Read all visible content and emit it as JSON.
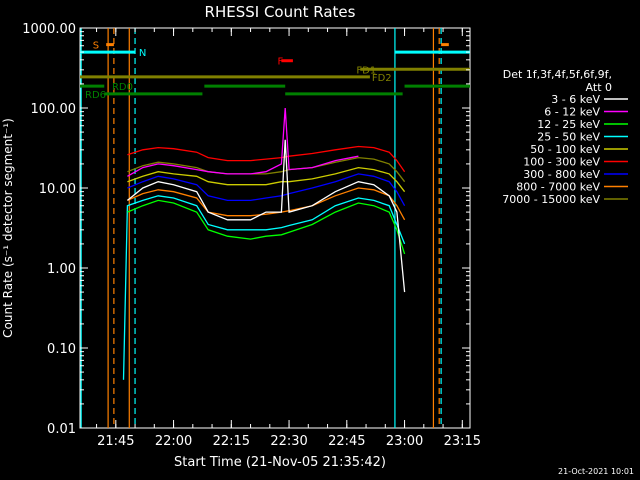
{
  "chart_data": {
    "type": "line",
    "title": "RHESSI Count Rates",
    "xlabel": "Start Time (21-Nov-05 21:35:42)",
    "ylabel": "Count Rate (s⁻¹ detector segment⁻¹)",
    "x_ticks": [
      "21:45",
      "22:00",
      "22:15",
      "22:30",
      "22:45",
      "23:00",
      "23:15"
    ],
    "y_ticks": [
      "1000.00",
      "100.00",
      "10.00",
      "1.00",
      "0.10",
      "0.01"
    ],
    "ylim": [
      0.01,
      1000
    ],
    "y_scale": "log",
    "xlim": [
      "21:35:42",
      "23:17:00"
    ],
    "grid": false,
    "legend_position": "right",
    "legend_header": [
      "Det 1f,3f,4f,5f,6f,9f,",
      "Att 0"
    ],
    "footer_date": "21-Oct-2021 10:01",
    "series": [
      {
        "name": "3 - 6 keV",
        "color": "#ffffff",
        "x": [
          "21:48",
          "21:52",
          "21:56",
          "22:00",
          "22:06",
          "22:09",
          "22:14",
          "22:20",
          "22:24",
          "22:28",
          "22:29",
          "22:30",
          "22:36",
          "22:42",
          "22:48",
          "22:52",
          "22:56",
          "22:58",
          "23:00"
        ],
        "values": [
          7,
          10,
          12,
          11,
          9,
          5,
          4,
          4,
          5,
          5,
          40,
          5,
          6,
          9,
          12,
          11,
          8,
          5,
          0.5
        ]
      },
      {
        "name": "6 - 12 keV",
        "color": "#ff00ff",
        "x": [
          "21:48",
          "21:52",
          "21:56",
          "22:00",
          "22:06",
          "22:09",
          "22:14",
          "22:20",
          "22:24",
          "22:28",
          "22:29",
          "22:30",
          "22:36",
          "22:42",
          "22:48"
        ],
        "values": [
          14,
          18,
          20,
          19,
          17,
          16,
          15,
          15,
          16,
          20,
          100,
          17,
          18,
          22,
          25
        ]
      },
      {
        "name": "12 - 25 keV",
        "color": "#00ff00",
        "x": [
          "21:48",
          "21:52",
          "21:56",
          "22:00",
          "22:06",
          "22:09",
          "22:14",
          "22:20",
          "22:24",
          "22:28",
          "22:30",
          "22:36",
          "22:42",
          "22:48",
          "22:52",
          "22:56",
          "22:58",
          "23:00"
        ],
        "values": [
          5,
          6,
          7,
          6.5,
          5,
          3,
          2.5,
          2.3,
          2.5,
          2.6,
          2.8,
          3.5,
          5,
          6.5,
          6,
          5,
          3,
          1.5
        ]
      },
      {
        "name": "25 - 50 keV",
        "color": "#00ffff",
        "x": [
          "21:47",
          "21:48",
          "21:52",
          "21:56",
          "22:00",
          "22:06",
          "22:09",
          "22:14",
          "22:20",
          "22:24",
          "22:28",
          "22:30",
          "22:36",
          "22:42",
          "22:48",
          "22:52",
          "22:56",
          "22:58",
          "23:00"
        ],
        "values": [
          0.04,
          6,
          7,
          8,
          7.5,
          6,
          3.5,
          3,
          3,
          3,
          3.2,
          3.4,
          4,
          6,
          7.5,
          7,
          6,
          3.5,
          2
        ]
      },
      {
        "name": "50 - 100 keV",
        "color": "#cccc00",
        "x": [
          "21:48",
          "21:52",
          "21:56",
          "22:00",
          "22:06",
          "22:09",
          "22:14",
          "22:20",
          "22:24",
          "22:28",
          "22:30",
          "22:36",
          "22:42",
          "22:48",
          "22:52",
          "22:56",
          "22:58",
          "23:00"
        ],
        "values": [
          12,
          14,
          16,
          15,
          14,
          12,
          11,
          11,
          11,
          12,
          12,
          13,
          15,
          18,
          17,
          15,
          12,
          9
        ]
      },
      {
        "name": "100 - 300 keV",
        "color": "#ff0000",
        "x": [
          "21:48",
          "21:52",
          "21:56",
          "22:00",
          "22:06",
          "22:09",
          "22:14",
          "22:20",
          "22:24",
          "22:28",
          "22:30",
          "22:36",
          "22:42",
          "22:48",
          "22:52",
          "22:56",
          "22:58",
          "23:00"
        ],
        "values": [
          26,
          30,
          32,
          31,
          28,
          24,
          22,
          22,
          23,
          24,
          25,
          27,
          30,
          33,
          32,
          28,
          22,
          16
        ]
      },
      {
        "name": "300 - 800 keV",
        "color": "#0000ff",
        "x": [
          "21:48",
          "21:52",
          "21:56",
          "22:00",
          "22:06",
          "22:09",
          "22:14",
          "22:20",
          "22:24",
          "22:28",
          "22:30",
          "22:36",
          "22:42",
          "22:48",
          "22:52",
          "22:56",
          "22:58",
          "23:00"
        ],
        "values": [
          10,
          12,
          14,
          13,
          11,
          8,
          7,
          7,
          7.5,
          8,
          8.5,
          10,
          12,
          15,
          14,
          12,
          9,
          6
        ]
      },
      {
        "name": "800 - 7000 keV",
        "color": "#ff8000",
        "x": [
          "21:48",
          "21:52",
          "21:56",
          "22:00",
          "22:06",
          "22:09",
          "22:14",
          "22:20",
          "22:24",
          "22:28",
          "22:30",
          "22:36",
          "22:42",
          "22:48",
          "22:52",
          "22:56",
          "22:58",
          "23:00"
        ],
        "values": [
          7,
          8.5,
          9.5,
          9,
          7.5,
          5,
          4.5,
          4.5,
          4.7,
          5,
          5.2,
          6,
          8,
          10,
          9.5,
          8,
          6,
          4
        ]
      },
      {
        "name": "7000 - 15000 keV",
        "color": "#808000",
        "x": [
          "21:48",
          "21:52",
          "21:56",
          "22:00",
          "22:06",
          "22:09",
          "22:14",
          "22:20",
          "22:24",
          "22:28",
          "22:30",
          "22:36",
          "22:42",
          "22:48",
          "22:52",
          "22:56",
          "22:58",
          "23:00"
        ],
        "values": [
          16,
          19,
          21,
          20,
          18,
          16,
          15,
          15,
          15,
          16,
          17,
          18,
          21,
          24,
          23,
          20,
          16,
          12
        ]
      }
    ],
    "vertical_lines": [
      {
        "x": "21:36:00",
        "style": "solid",
        "color": "#00ffff"
      },
      {
        "x": "21:43:00",
        "style": "solid",
        "color": "#ff8000"
      },
      {
        "x": "21:44:30",
        "style": "dashed",
        "color": "#ff8000"
      },
      {
        "x": "21:48:30",
        "style": "solid",
        "color": "#ff8000"
      },
      {
        "x": "21:50:00",
        "style": "dashed",
        "color": "#00ffff"
      },
      {
        "x": "22:57:30",
        "style": "solid",
        "color": "#00ffff"
      },
      {
        "x": "23:07:30",
        "style": "solid",
        "color": "#ff8000"
      },
      {
        "x": "23:09:00",
        "style": "dashed",
        "color": "#ff8000"
      },
      {
        "x": "23:09:30",
        "style": "dashed",
        "color": "#00ffff"
      }
    ],
    "annotations": [
      {
        "label": "S",
        "color": "#ff8000",
        "label_x": "21:39:00",
        "y": 620,
        "bars": [
          {
            "x0": "21:42:30",
            "x1": "21:44:30"
          },
          {
            "x0": "23:09:30",
            "x1": "23:11:30"
          }
        ]
      },
      {
        "label": "N",
        "color": "#00ffff",
        "label_x": "21:51:00",
        "y": 500,
        "bars": [
          {
            "x0": "21:35:42",
            "x1": "21:50:00"
          },
          {
            "x0": "22:57:30",
            "x1": "23:17:00"
          }
        ]
      },
      {
        "label": "F",
        "color": "#ff0000",
        "label_x": "22:27:00",
        "y": 390,
        "bars": [
          {
            "x0": "22:28:00",
            "x1": "22:31:00"
          }
        ]
      },
      {
        "label": "FD1",
        "color": "#808000",
        "label_x": "22:47:30",
        "y": 305,
        "bars": [
          {
            "x0": "22:48:30",
            "x1": "23:17:00"
          }
        ]
      },
      {
        "label": "FD2",
        "color": "#808000",
        "label_x": "22:51:30",
        "y": 245,
        "bars": [
          {
            "x0": "21:35:42",
            "x1": "22:51:00"
          }
        ]
      },
      {
        "label": "RD0",
        "color": "#008000",
        "label_x": "21:44:00",
        "y": 188,
        "bars": [
          {
            "x0": "21:35:42",
            "x1": "21:42:00"
          },
          {
            "x0": "22:08:00",
            "x1": "22:29:00"
          },
          {
            "x0": "23:00:00",
            "x1": "23:17:00"
          }
        ]
      },
      {
        "label": "RD6",
        "color": "#008000",
        "label_x": "21:37:00",
        "y": 150,
        "bars": [
          {
            "x0": "21:42:00",
            "x1": "22:07:30"
          },
          {
            "x0": "22:29:00",
            "x1": "22:59:30"
          }
        ]
      }
    ]
  }
}
